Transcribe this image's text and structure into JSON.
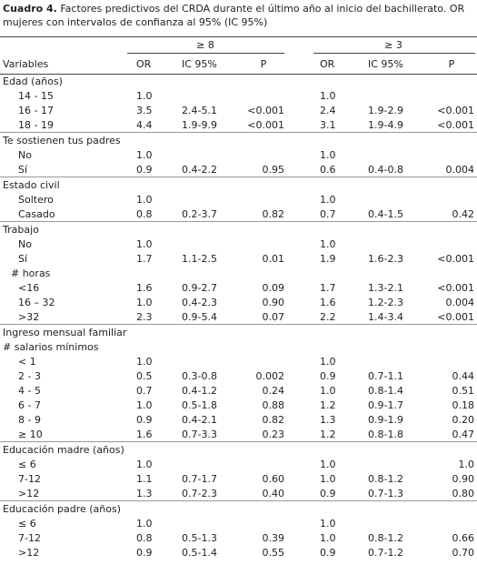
{
  "caption": {
    "label": "Cuadro 4.",
    "text": "Factores predictivos del CRDA durante el último año al inicio del bachillerato. OR mujeres con intervalos de confianza al 95% (IC 95%)"
  },
  "table": {
    "groups": [
      "≥ 8",
      "≥ 3"
    ],
    "columns": [
      "Variables",
      "OR",
      "IC 95%",
      "P",
      "OR",
      "IC 95%",
      "P"
    ],
    "sections": [
      {
        "title": "Edad (años)",
        "rows": [
          [
            "14 - 15",
            "1.0",
            null,
            null,
            "1.0",
            null,
            null
          ],
          [
            "16 - 17",
            "3.5",
            "2.4-5.1",
            "<0.001",
            "2.4",
            "1.9-2.9",
            "<0.001"
          ],
          [
            "18 - 19",
            "4.4",
            "1.9-9.9",
            "<0.001",
            "3.1",
            "1.9-4.9",
            "<0.001"
          ]
        ]
      },
      {
        "title": "Te sostienen tus padres",
        "rows": [
          [
            "No",
            "1.0",
            null,
            null,
            "1.0",
            null,
            null
          ],
          [
            "Sí",
            "0.9",
            "0.4-2.2",
            "0.95",
            "0.6",
            "0.4-0.8",
            "0.004"
          ]
        ]
      },
      {
        "title": "Estado civil",
        "rows": [
          [
            "Soltero",
            "1.0",
            null,
            null,
            "1.0",
            null,
            null
          ],
          [
            "Casado",
            "0.8",
            "0.2-3.7",
            "0.82",
            "0.7",
            "0.4-1.5",
            "0.42"
          ]
        ]
      },
      {
        "title": "Trabajo",
        "rows": [
          [
            "No",
            "1.0",
            null,
            null,
            "1.0",
            null,
            null
          ],
          [
            "Sí",
            "1.7",
            "1.1-2.5",
            "0.01",
            "1.9",
            "1.6-2.3",
            "<0.001"
          ]
        ],
        "subgroup": {
          "title": "# horas",
          "rows": [
            [
              "<16",
              "1.6",
              "0.9-2.7",
              "0.09",
              "1.7",
              "1.3-2.1",
              "<0.001"
            ],
            [
              "16 – 32",
              "1.0",
              "0.4-2.3",
              "0.90",
              "1.6",
              "1.2-2.3",
              "0.004"
            ],
            [
              ">32",
              "2.3",
              "0.9-5.4",
              "0.07",
              "2.2",
              "1.4-3.4",
              "<0.001"
            ]
          ]
        }
      },
      {
        "title": "Ingreso mensual familiar",
        "subtitle": "# salarios mínimos",
        "rows": [
          [
            "< 1",
            "1.0",
            null,
            null,
            "1.0",
            null,
            null
          ],
          [
            "2 - 3",
            "0.5",
            "0.3-0.8",
            "0.002",
            "0.9",
            "0.7-1.1",
            "0.44"
          ],
          [
            "4 - 5",
            "0.7",
            "0.4-1.2",
            "0.24",
            "1.0",
            "0.8-1.4",
            "0.51"
          ],
          [
            "6 - 7",
            "1.0",
            "0.5-1.8",
            "0.88",
            "1.2",
            "0.9-1.7",
            "0.18"
          ],
          [
            "8 - 9",
            "0.9",
            "0.4-2.1",
            "0.82",
            "1.3",
            "0.9-1.9",
            "0.20"
          ],
          [
            "≥ 10",
            "1.6",
            "0.7-3.3",
            "0.23",
            "1.2",
            "0.8-1.8",
            "0.47"
          ]
        ]
      },
      {
        "title": "Educación madre (años)",
        "rows": [
          [
            "≤ 6",
            "1.0",
            null,
            null,
            "1.0",
            null,
            "1.0"
          ],
          [
            "7-12",
            "1.1",
            "0.7-1.7",
            "0.60",
            "1.0",
            "0.8-1.2",
            "0.90"
          ],
          [
            ">12",
            "1.3",
            "0.7-2.3",
            "0.40",
            "0.9",
            "0.7-1.3",
            "0.80"
          ]
        ]
      },
      {
        "title": "Educación padre (años)",
        "rows": [
          [
            "≤ 6",
            "1.0",
            null,
            null,
            "1.0",
            null,
            null
          ],
          [
            "7-12",
            "0.8",
            "0.5-1.3",
            "0.39",
            "1.0",
            "0.8-1.2",
            "0.66"
          ],
          [
            ">12",
            "0.9",
            "0.5-1.4",
            "0.55",
            "0.9",
            "0.7-1.2",
            "0.70"
          ]
        ]
      }
    ]
  }
}
